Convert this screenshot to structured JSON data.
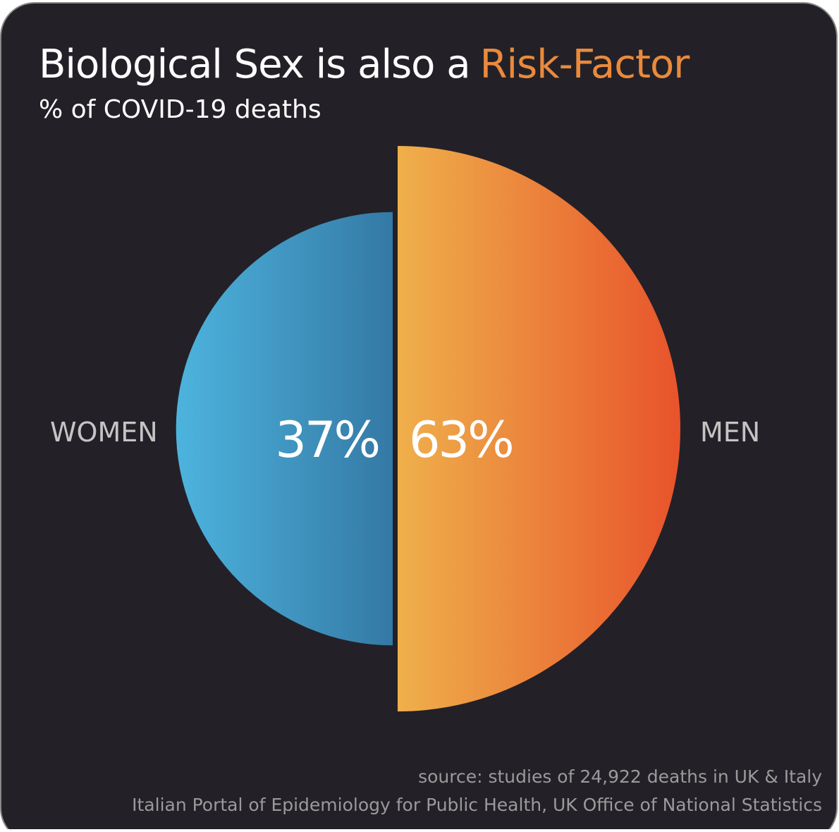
{
  "chart_data": {
    "type": "semicircle",
    "title_parts": [
      "Biological Sex is also a",
      "Risk-Factor"
    ],
    "title_colors": [
      "#ffffff",
      "#e98a3c"
    ],
    "subtitle": "% of COVID-19 deaths",
    "categories": [
      "WOMEN",
      "MEN"
    ],
    "values": [
      37,
      63
    ],
    "value_labels": [
      "37%",
      "63%"
    ],
    "colors": [
      [
        "#4db4de",
        "#3479a5"
      ],
      [
        "#efb04b",
        "#e8532b"
      ]
    ],
    "sources": [
      "source: studies of 24,922 deaths in UK & Italy",
      "Italian Portal of Epidemiology for Public Health, UK Office of National Statistics"
    ]
  }
}
